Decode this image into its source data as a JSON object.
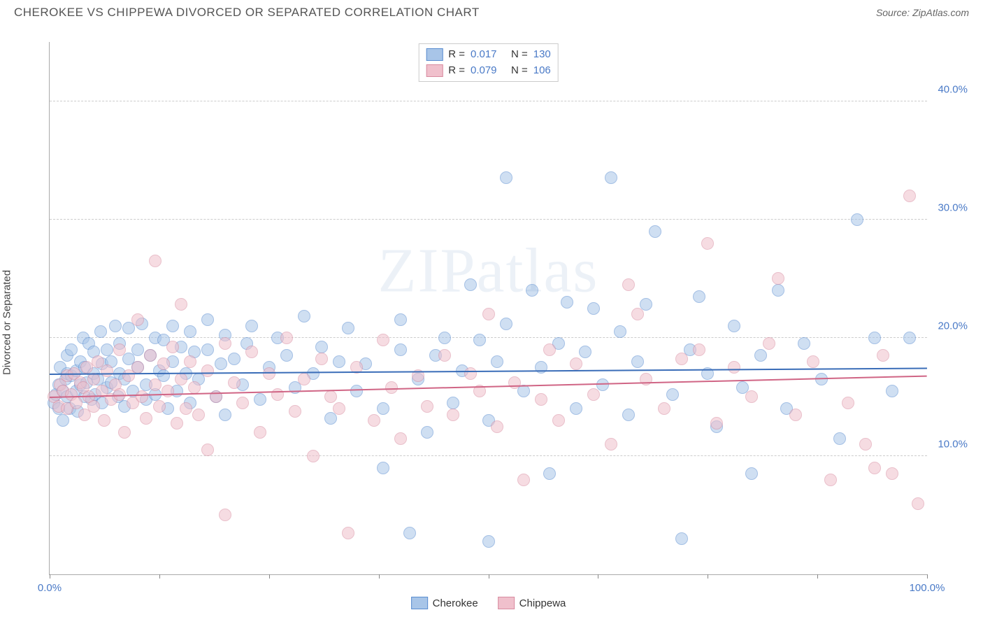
{
  "title": "CHEROKEE VS CHIPPEWA DIVORCED OR SEPARATED CORRELATION CHART",
  "source_label": "Source: ",
  "source_name": "ZipAtlas.com",
  "ylabel": "Divorced or Separated",
  "watermark": "ZIPatlas",
  "chart": {
    "type": "scatter",
    "xlim": [
      0,
      100
    ],
    "ylim": [
      0,
      45
    ],
    "yticks": [
      10,
      20,
      30,
      40
    ],
    "ytick_labels": [
      "10.0%",
      "20.0%",
      "30.0%",
      "40.0%"
    ],
    "xticks": [
      0,
      12.5,
      25,
      37.5,
      50,
      62.5,
      75,
      87.5,
      100
    ],
    "xtick_labels": {
      "0": "0.0%",
      "100": "100.0%"
    },
    "grid_color": "#cccccc",
    "axis_color": "#aaaaaa",
    "background": "#ffffff",
    "label_color": "#4a7ac7",
    "marker_radius": 9,
    "marker_border_width": 1.5,
    "marker_opacity": 0.55
  },
  "series": [
    {
      "name": "Cherokee",
      "fill": "#a8c5e8",
      "stroke": "#5a8dd0",
      "R": "0.017",
      "N": "130",
      "trend": {
        "y_at_x0": 17.0,
        "y_at_x100": 17.5,
        "color": "#3a6db8",
        "width": 2
      },
      "points": [
        [
          0.5,
          14.5
        ],
        [
          0.7,
          15.2
        ],
        [
          1,
          16
        ],
        [
          1,
          14
        ],
        [
          1.2,
          17.5
        ],
        [
          1.5,
          15.5
        ],
        [
          1.5,
          13
        ],
        [
          1.8,
          16.5
        ],
        [
          2,
          17
        ],
        [
          2,
          15
        ],
        [
          2,
          18.5
        ],
        [
          2.3,
          14
        ],
        [
          2.5,
          16.8
        ],
        [
          2.5,
          19
        ],
        [
          3,
          15.5
        ],
        [
          3,
          17.2
        ],
        [
          3.2,
          13.8
        ],
        [
          3.5,
          18
        ],
        [
          3.5,
          16
        ],
        [
          3.8,
          20
        ],
        [
          4,
          15
        ],
        [
          4,
          17.5
        ],
        [
          4.2,
          16.2
        ],
        [
          4.5,
          19.5
        ],
        [
          4.8,
          14.8
        ],
        [
          5,
          17
        ],
        [
          5,
          18.8
        ],
        [
          5.2,
          15.2
        ],
        [
          5.5,
          16.5
        ],
        [
          5.8,
          20.5
        ],
        [
          6,
          14.5
        ],
        [
          6,
          17.8
        ],
        [
          6.5,
          19
        ],
        [
          6.5,
          15.8
        ],
        [
          7,
          16.2
        ],
        [
          7,
          18
        ],
        [
          7.5,
          21
        ],
        [
          7.8,
          15
        ],
        [
          8,
          19.5
        ],
        [
          8,
          17
        ],
        [
          8.5,
          14.2
        ],
        [
          8.5,
          16.5
        ],
        [
          9,
          20.8
        ],
        [
          9,
          18.2
        ],
        [
          9.5,
          15.5
        ],
        [
          10,
          19
        ],
        [
          10,
          17.5
        ],
        [
          10.5,
          21.2
        ],
        [
          11,
          16
        ],
        [
          11,
          14.8
        ],
        [
          11.5,
          18.5
        ],
        [
          12,
          20
        ],
        [
          12,
          15.2
        ],
        [
          12.5,
          17.2
        ],
        [
          13,
          19.8
        ],
        [
          13,
          16.8
        ],
        [
          13.5,
          14
        ],
        [
          14,
          18
        ],
        [
          14,
          21
        ],
        [
          14.5,
          15.5
        ],
        [
          15,
          19.2
        ],
        [
          15.5,
          17
        ],
        [
          16,
          20.5
        ],
        [
          16,
          14.5
        ],
        [
          16.5,
          18.8
        ],
        [
          17,
          16.5
        ],
        [
          18,
          19
        ],
        [
          18,
          21.5
        ],
        [
          19,
          15
        ],
        [
          19.5,
          17.8
        ],
        [
          20,
          20.2
        ],
        [
          20,
          13.5
        ],
        [
          21,
          18.2
        ],
        [
          22,
          16
        ],
        [
          22.5,
          19.5
        ],
        [
          23,
          21
        ],
        [
          24,
          14.8
        ],
        [
          25,
          17.5
        ],
        [
          26,
          20
        ],
        [
          27,
          18.5
        ],
        [
          28,
          15.8
        ],
        [
          29,
          21.8
        ],
        [
          30,
          17
        ],
        [
          31,
          19.2
        ],
        [
          32,
          13.2
        ],
        [
          33,
          18
        ],
        [
          34,
          20.8
        ],
        [
          35,
          15.5
        ],
        [
          36,
          17.8
        ],
        [
          38,
          9
        ],
        [
          38,
          14
        ],
        [
          40,
          19
        ],
        [
          40,
          21.5
        ],
        [
          41,
          3.5
        ],
        [
          42,
          16.5
        ],
        [
          43,
          12
        ],
        [
          44,
          18.5
        ],
        [
          45,
          20
        ],
        [
          46,
          14.5
        ],
        [
          47,
          17.2
        ],
        [
          48,
          24.5
        ],
        [
          49,
          19.8
        ],
        [
          50,
          2.8
        ],
        [
          50,
          13
        ],
        [
          51,
          18
        ],
        [
          52,
          21.2
        ],
        [
          52,
          33.5
        ],
        [
          54,
          15.5
        ],
        [
          55,
          24
        ],
        [
          56,
          17.5
        ],
        [
          57,
          8.5
        ],
        [
          58,
          19.5
        ],
        [
          59,
          23
        ],
        [
          60,
          14
        ],
        [
          61,
          18.8
        ],
        [
          62,
          22.5
        ],
        [
          63,
          16
        ],
        [
          64,
          33.5
        ],
        [
          65,
          20.5
        ],
        [
          66,
          13.5
        ],
        [
          67,
          18
        ],
        [
          68,
          22.8
        ],
        [
          69,
          29
        ],
        [
          71,
          15.2
        ],
        [
          72,
          3
        ],
        [
          73,
          19
        ],
        [
          74,
          23.5
        ],
        [
          75,
          17
        ],
        [
          76,
          12.5
        ],
        [
          78,
          21
        ],
        [
          79,
          15.8
        ],
        [
          80,
          8.5
        ],
        [
          81,
          18.5
        ],
        [
          83,
          24
        ],
        [
          84,
          14
        ],
        [
          86,
          19.5
        ],
        [
          88,
          16.5
        ],
        [
          90,
          11.5
        ],
        [
          92,
          30
        ],
        [
          94,
          20
        ],
        [
          96,
          15.5
        ],
        [
          98,
          20
        ]
      ]
    },
    {
      "name": "Chippewa",
      "fill": "#f0c0cc",
      "stroke": "#d88ca0",
      "R": "0.079",
      "N": "106",
      "trend": {
        "y_at_x0": 15.0,
        "y_at_x100": 16.8,
        "color": "#d06585",
        "width": 2
      },
      "points": [
        [
          0.5,
          15
        ],
        [
          1,
          14.2
        ],
        [
          1.2,
          16
        ],
        [
          1.5,
          15.5
        ],
        [
          2,
          14
        ],
        [
          2,
          16.8
        ],
        [
          2.5,
          15.2
        ],
        [
          2.8,
          17
        ],
        [
          3,
          14.5
        ],
        [
          3.5,
          16.2
        ],
        [
          3.8,
          15.8
        ],
        [
          4,
          13.5
        ],
        [
          4.2,
          17.5
        ],
        [
          4.5,
          15
        ],
        [
          5,
          16.5
        ],
        [
          5,
          14.2
        ],
        [
          5.5,
          18
        ],
        [
          6,
          15.5
        ],
        [
          6.2,
          13
        ],
        [
          6.5,
          17.2
        ],
        [
          7,
          14.8
        ],
        [
          7.5,
          16
        ],
        [
          8,
          15.2
        ],
        [
          8,
          19
        ],
        [
          8.5,
          12
        ],
        [
          9,
          16.8
        ],
        [
          9.5,
          14.5
        ],
        [
          10,
          21.5
        ],
        [
          10,
          17.5
        ],
        [
          10.5,
          15
        ],
        [
          11,
          13.2
        ],
        [
          11.5,
          18.5
        ],
        [
          12,
          16
        ],
        [
          12,
          26.5
        ],
        [
          12.5,
          14.2
        ],
        [
          13,
          17.8
        ],
        [
          13.5,
          15.5
        ],
        [
          14,
          19.2
        ],
        [
          14.5,
          12.8
        ],
        [
          15,
          16.5
        ],
        [
          15,
          22.8
        ],
        [
          15.5,
          14
        ],
        [
          16,
          18
        ],
        [
          16.5,
          15.8
        ],
        [
          17,
          13.5
        ],
        [
          18,
          17.2
        ],
        [
          18,
          10.5
        ],
        [
          19,
          15
        ],
        [
          20,
          19.5
        ],
        [
          20,
          5
        ],
        [
          21,
          16.2
        ],
        [
          22,
          14.5
        ],
        [
          23,
          18.8
        ],
        [
          24,
          12
        ],
        [
          25,
          17
        ],
        [
          26,
          15.2
        ],
        [
          27,
          20
        ],
        [
          28,
          13.8
        ],
        [
          29,
          16.5
        ],
        [
          30,
          10
        ],
        [
          31,
          18.2
        ],
        [
          32,
          15
        ],
        [
          33,
          14
        ],
        [
          34,
          3.5
        ],
        [
          35,
          17.5
        ],
        [
          37,
          13
        ],
        [
          38,
          19.8
        ],
        [
          39,
          15.8
        ],
        [
          40,
          11.5
        ],
        [
          42,
          16.8
        ],
        [
          43,
          14.2
        ],
        [
          45,
          18.5
        ],
        [
          46,
          13.5
        ],
        [
          48,
          17
        ],
        [
          49,
          15.5
        ],
        [
          50,
          22
        ],
        [
          51,
          12.5
        ],
        [
          53,
          16.2
        ],
        [
          54,
          8
        ],
        [
          56,
          14.8
        ],
        [
          57,
          19
        ],
        [
          58,
          13
        ],
        [
          60,
          17.8
        ],
        [
          62,
          15.2
        ],
        [
          64,
          11
        ],
        [
          66,
          24.5
        ],
        [
          67,
          22
        ],
        [
          68,
          16.5
        ],
        [
          70,
          14
        ],
        [
          72,
          18.2
        ],
        [
          74,
          19
        ],
        [
          75,
          28
        ],
        [
          76,
          12.8
        ],
        [
          78,
          17.5
        ],
        [
          80,
          15
        ],
        [
          82,
          19.5
        ],
        [
          83,
          25
        ],
        [
          85,
          13.5
        ],
        [
          87,
          18
        ],
        [
          89,
          8
        ],
        [
          91,
          14.5
        ],
        [
          93,
          11
        ],
        [
          94,
          9
        ],
        [
          95,
          18.5
        ],
        [
          96,
          8.5
        ],
        [
          98,
          32
        ],
        [
          99,
          6
        ]
      ]
    }
  ],
  "legend_top": {
    "r_label": "R =",
    "n_label": "N ="
  },
  "legend_bottom_labels": [
    "Cherokee",
    "Chippewa"
  ]
}
